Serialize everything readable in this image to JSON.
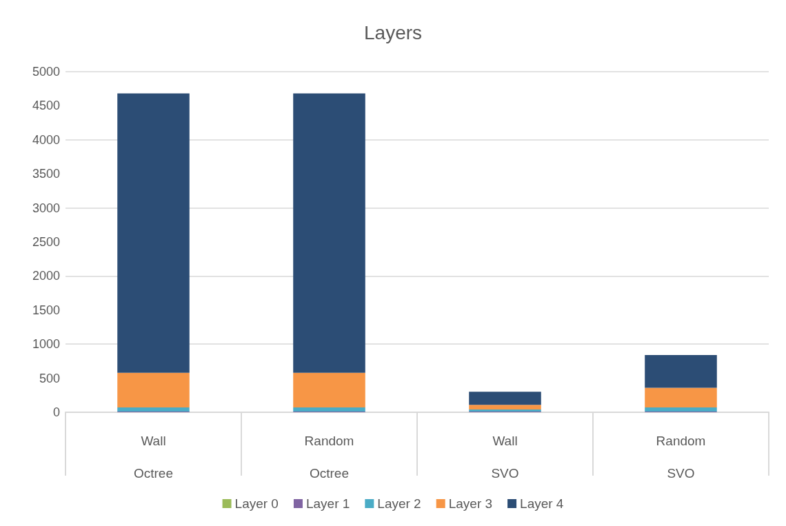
{
  "chart_data": {
    "type": "bar",
    "title": "Layers",
    "categories": [
      "Wall\nOctree",
      "Random\nOctree",
      "Wall\nSVO",
      "Random\nSVO"
    ],
    "stacked": true,
    "series": [
      {
        "name": "Layer 0",
        "color": "#9bbb59",
        "values": [
          0,
          0,
          0,
          0
        ]
      },
      {
        "name": "Layer 1",
        "color": "#8064a2",
        "values": [
          10,
          10,
          10,
          10
        ]
      },
      {
        "name": "Layer 2",
        "color": "#4bacc6",
        "values": [
          60,
          60,
          30,
          60
        ]
      },
      {
        "name": "Layer 3",
        "color": "#f79646",
        "values": [
          510,
          510,
          70,
          290
        ]
      },
      {
        "name": "Layer 4",
        "color": "#2c4d75",
        "values": [
          4100,
          4100,
          190,
          480
        ]
      }
    ],
    "ylim": [
      0,
      5000
    ],
    "yticks": [
      0,
      500,
      1000,
      1500,
      2000,
      2500,
      3000,
      3500,
      4000,
      4500,
      5000
    ],
    "grid": "y",
    "legend": "bottom"
  }
}
